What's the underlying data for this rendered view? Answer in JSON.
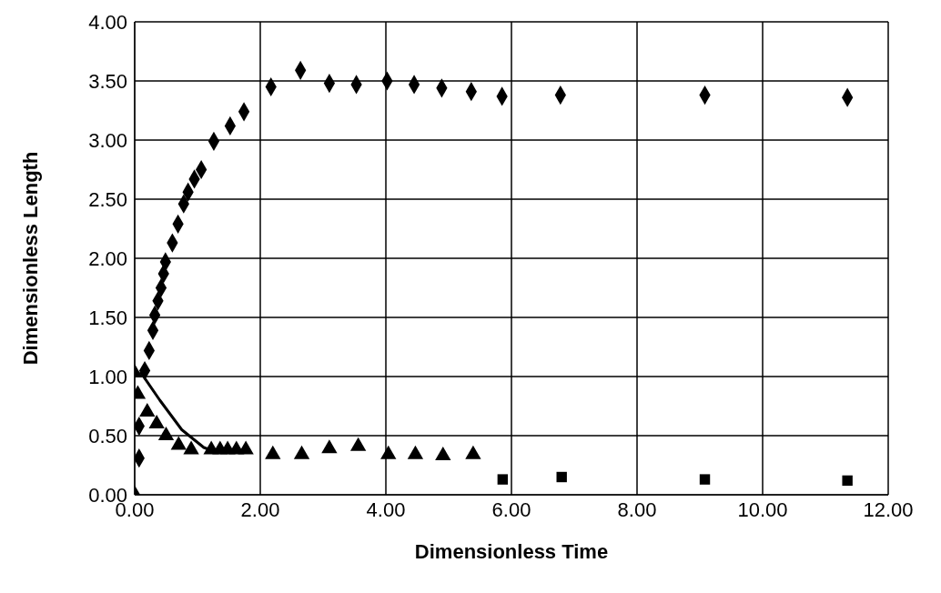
{
  "chart_data": {
    "type": "scatter",
    "xlabel": "Dimensionless Time",
    "ylabel": "Dimensionless Length",
    "xlim": [
      0,
      12
    ],
    "xticks": [
      {
        "value": 0,
        "label": "0.00"
      },
      {
        "value": 2,
        "label": "2.00"
      },
      {
        "value": 4,
        "label": "4.00"
      },
      {
        "value": 6,
        "label": "6.00"
      },
      {
        "value": 8,
        "label": "8.00"
      },
      {
        "value": 10,
        "label": "10.00"
      },
      {
        "value": 12,
        "label": "12.00"
      }
    ],
    "ylim": [
      0,
      4
    ],
    "yticks": [
      {
        "value": 0,
        "label": "0.00"
      },
      {
        "value": 0.5,
        "label": "0.50"
      },
      {
        "value": 1,
        "label": "1.00"
      },
      {
        "value": 1.5,
        "label": "1.50"
      },
      {
        "value": 2,
        "label": "2.00"
      },
      {
        "value": 2.5,
        "label": "2.50"
      },
      {
        "value": 3,
        "label": "3.00"
      },
      {
        "value": 3.5,
        "label": "3.50"
      },
      {
        "value": 4,
        "label": "4.00"
      }
    ],
    "grid": true,
    "series": [
      {
        "marker": "diamond",
        "color": "#000000",
        "x": [
          0,
          0.07,
          0.07,
          0.16,
          0.23,
          0.29,
          0.32,
          0.37,
          0.42,
          0.46,
          0.49,
          0.6,
          0.69,
          0.78,
          0.85,
          0.95,
          1.06,
          1.26,
          1.52,
          1.74,
          2.17,
          2.64,
          3.1,
          3.53,
          4.02,
          4.45,
          4.89,
          5.36,
          5.85,
          6.78,
          9.08,
          11.35
        ],
        "values": [
          0,
          0.31,
          0.58,
          1.05,
          1.22,
          1.39,
          1.52,
          1.64,
          1.75,
          1.87,
          1.97,
          2.13,
          2.29,
          2.46,
          2.56,
          2.67,
          2.75,
          2.99,
          3.12,
          3.24,
          3.45,
          3.59,
          3.48,
          3.47,
          3.5,
          3.47,
          3.44,
          3.41,
          3.37,
          3.38,
          3.38,
          3.36
        ]
      },
      {
        "marker": "triangle",
        "color": "#000000",
        "x": [
          0,
          0.05,
          0.2,
          0.35,
          0.5,
          0.7,
          0.9,
          1.22,
          1.36,
          1.48,
          1.62,
          1.77,
          2.2,
          2.66,
          3.1,
          3.56,
          4.04,
          4.47,
          4.91,
          5.39
        ],
        "values": [
          1.03,
          0.85,
          0.7,
          0.6,
          0.5,
          0.42,
          0.38,
          0.38,
          0.38,
          0.38,
          0.38,
          0.38,
          0.34,
          0.34,
          0.39,
          0.41,
          0.34,
          0.34,
          0.33,
          0.34
        ]
      },
      {
        "type": "line",
        "marker": "none",
        "color": "#000000",
        "x": [
          0.09,
          0.4,
          0.75,
          1.1,
          1.25
        ],
        "values": [
          1.04,
          0.8,
          0.55,
          0.4,
          0.37
        ]
      },
      {
        "marker": "square",
        "color": "#000000",
        "x": [
          5.86,
          6.8,
          9.08,
          11.35
        ],
        "values": [
          0.13,
          0.15,
          0.13,
          0.12
        ]
      }
    ]
  }
}
